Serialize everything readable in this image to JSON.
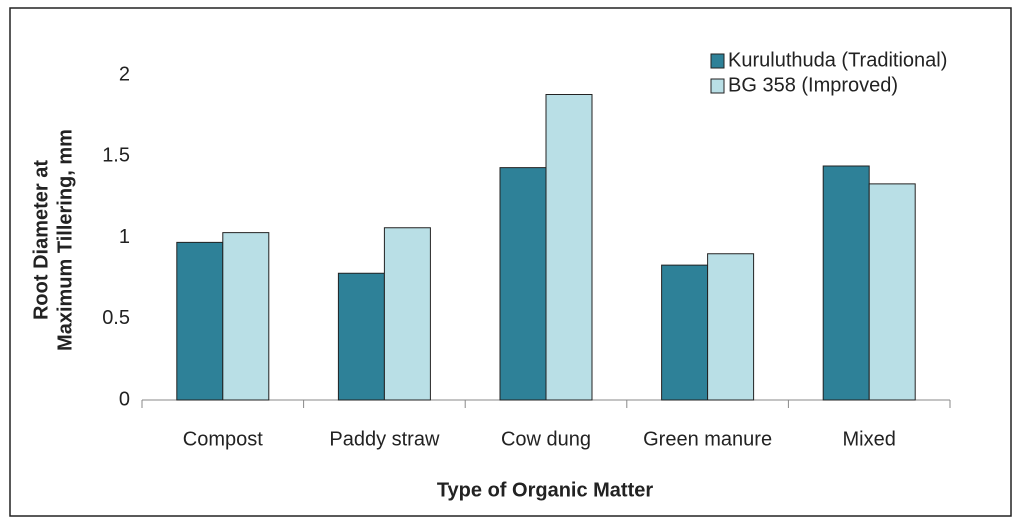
{
  "chart_data": {
    "type": "bar",
    "xlabel": "Type of Organic Matter",
    "ylabel": [
      "Root Diameter at",
      "Maximum Tillering, mm"
    ],
    "categories": [
      "Compost",
      "Paddy straw",
      "Cow dung",
      "Green manure",
      "Mixed"
    ],
    "series": [
      {
        "name": "Kuruluthuda (Traditional)",
        "color": "#2e8198",
        "values": [
          0.97,
          0.78,
          1.43,
          0.83,
          1.44
        ]
      },
      {
        "name": "BG 358 (Improved)",
        "color": "#b9dfe6",
        "values": [
          1.03,
          1.06,
          1.88,
          0.9,
          1.33
        ]
      }
    ],
    "ylim": [
      0,
      2
    ],
    "yticks": [
      0,
      0.5,
      1,
      1.5,
      2
    ],
    "grid": false,
    "legend": "upper right"
  }
}
